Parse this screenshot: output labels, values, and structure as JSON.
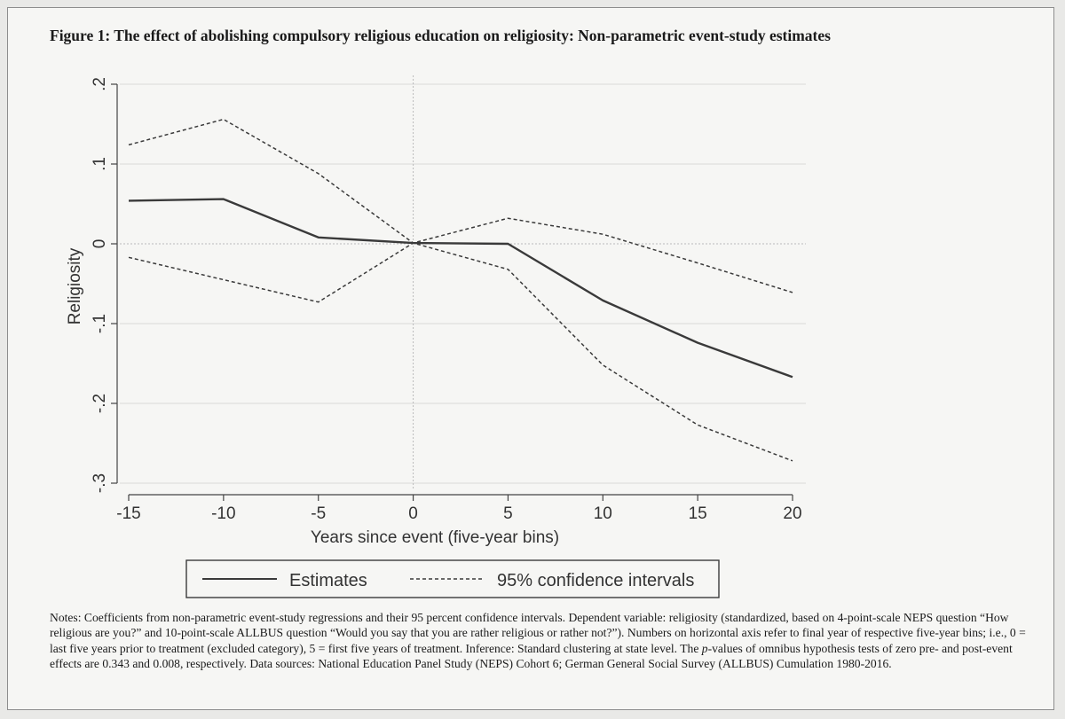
{
  "figure": {
    "title": "Figure 1: The effect of abolishing compulsory religious education on religiosity: Non-parametric event-study estimates"
  },
  "chart_data": {
    "type": "line",
    "title": "",
    "xlabel": "Years since event (five-year bins)",
    "ylabel": "Religiosity",
    "x": [
      -15,
      -10,
      -5,
      0,
      5,
      10,
      15,
      20
    ],
    "xticks": [
      -15,
      -10,
      -5,
      0,
      5,
      10,
      15,
      20
    ],
    "xtick_labels": [
      "-15",
      "-10",
      "-5",
      "0",
      "5",
      "10",
      "15",
      "20"
    ],
    "yticks": [
      0.2,
      0.1,
      0,
      -0.1,
      -0.2,
      -0.3
    ],
    "ytick_labels": [
      ".2",
      ".1",
      "0",
      "-.1",
      "-.2",
      "-.3"
    ],
    "xlim": [
      -15,
      20
    ],
    "ylim": [
      -0.3,
      0.2
    ],
    "grid": true,
    "legend_position": "bottom",
    "series": [
      {
        "name": "Estimates",
        "style": "solid",
        "values": [
          0.054,
          0.056,
          0.008,
          0.001,
          0.0,
          -0.071,
          -0.124,
          -0.167
        ]
      },
      {
        "name": "95% confidence intervals",
        "style": "dashed",
        "values": [
          0.124,
          0.156,
          0.088,
          0.001,
          0.032,
          0.012,
          -0.024,
          -0.061
        ]
      },
      {
        "name": "",
        "style": "dashed",
        "values": [
          -0.017,
          -0.045,
          -0.073,
          0.001,
          -0.032,
          -0.152,
          -0.227,
          -0.272
        ]
      }
    ]
  },
  "notes": {
    "text_before": "Notes: Coefficients from non-parametric event-study regressions and their 95 percent confidence intervals. Dependent variable: religiosity (standardized, based on 4-point-scale NEPS question “How religious are you?” and 10-point-scale ALLBUS question “Would you say that you are rather religious or rather not?”). Numbers on horizontal axis refer to final year of respective five-year bins; i.e., 0 = last five years prior to treatment (excluded category), 5 = first five years of treatment. Inference: Standard clustering at state level. The ",
    "italic": "p",
    "text_after": "-values of omnibus hypothesis tests of zero pre- and post-event effects are 0.343 and 0.008, respectively. Data sources: National Education Panel Study (NEPS) Cohort 6; German General Social Survey (ALLBUS) Cumulation 1980-2016."
  },
  "colors": {
    "line": "#3a3a3a",
    "grid": "#d9d9d9",
    "axis": "#444444"
  }
}
